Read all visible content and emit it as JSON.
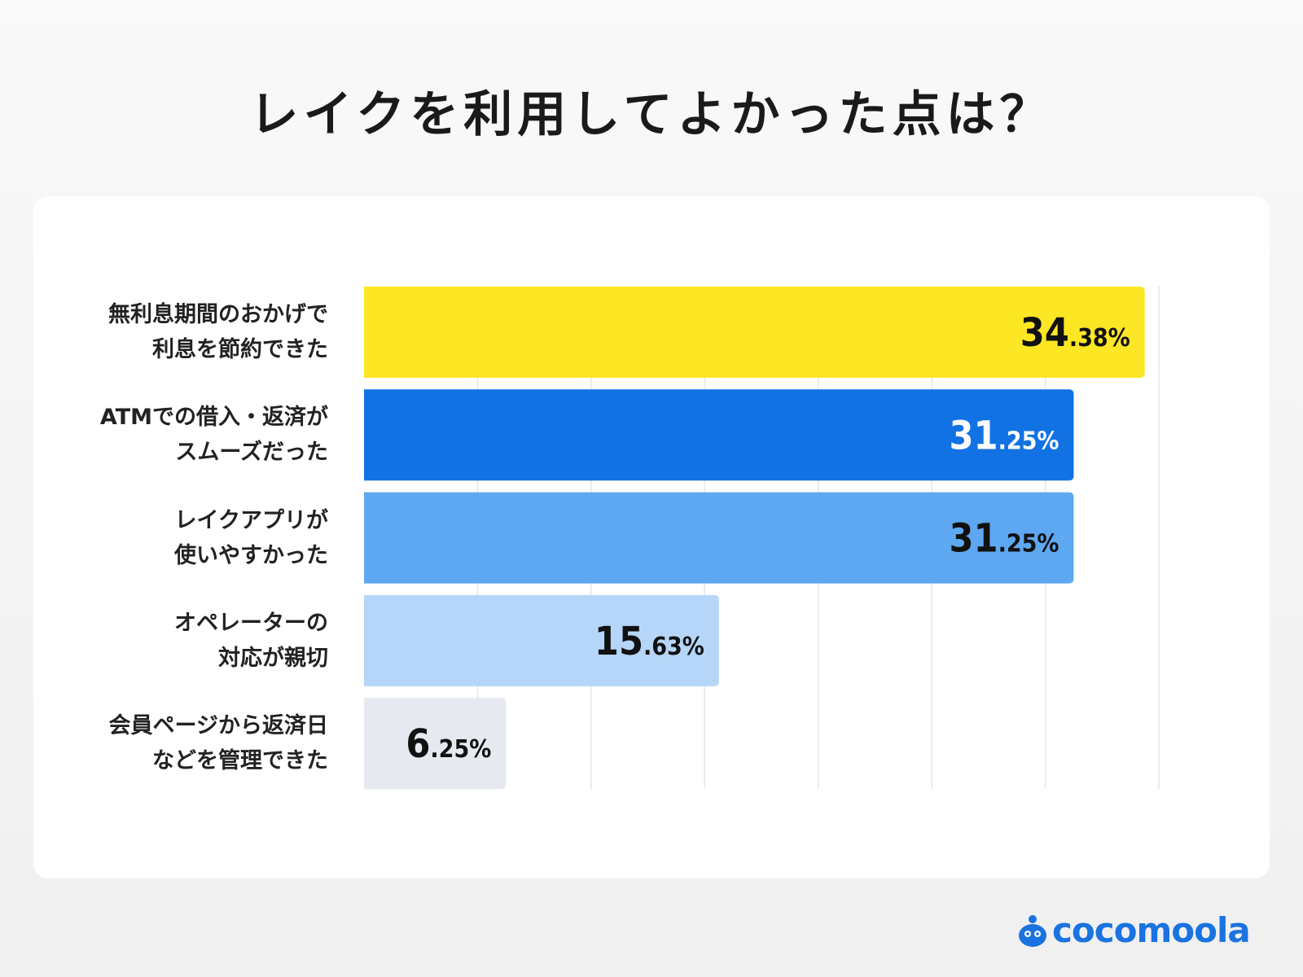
{
  "chart_data": {
    "type": "bar",
    "orientation": "horizontal",
    "title": "レイクを利用してよかった点は？",
    "categories": [
      "無利息期間のおかげで\n利息を節約できた",
      "ATMでの借入・返済が\nスムーズだった",
      "レイクアプリが\n使いやすかった",
      "オペレーターの\n対応が親切",
      "会員ページから返済日\nなどを管理できた"
    ],
    "values": [
      34.38,
      31.25,
      31.25,
      15.63,
      6.25
    ],
    "value_labels": [
      [
        "34",
        ".38%"
      ],
      [
        "31",
        ".25%"
      ],
      [
        "31",
        ".25%"
      ],
      [
        "15",
        ".63%"
      ],
      [
        "6",
        ".25%"
      ]
    ],
    "colors": [
      "#fde623",
      "#1272e3",
      "#5ea8f1",
      "#b5d6f8",
      "#e6e9ef"
    ],
    "label_colors": [
      "#111111",
      "#ffffff",
      "#111111",
      "#111111",
      "#111111"
    ],
    "xlim": [
      0,
      35
    ],
    "grid": true,
    "grid_step": 5,
    "unit": "%"
  },
  "brand": {
    "name": "cocomoola",
    "color": "#1a73e0"
  }
}
